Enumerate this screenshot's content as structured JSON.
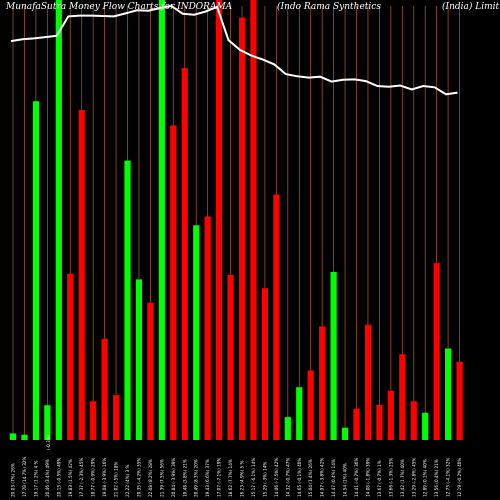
{
  "header": {
    "left": "MunafaSutra  Money Flow  Charts for INDORAMA",
    "middle": "(Indo  Rama  Synthetics",
    "right": "(India) Limit"
  },
  "colors": {
    "background": "#000000",
    "up": "#00ff00",
    "down": "#ff0000",
    "price_line": "#ffffff",
    "grid": "#a0522d"
  },
  "chart_data": {
    "type": "bar",
    "title": "MunafaSutra  Money Flow  Charts for INDORAMA (Indo  Rama  Synthetics (India) Limit",
    "bars": [
      {
        "label": "20.03 (7%) 26%",
        "color": "green",
        "value": 1.5
      },
      {
        "label": "17.78 (14.7%) 32%",
        "color": "green",
        "value": 1.2
      },
      {
        "label": "19.17 (1.2%) 4 %",
        "color": "green",
        "value": 77
      },
      {
        "label": "20.46 (3.4%) 49%",
        "color": "green",
        "value": 7.9
      },
      {
        "label": "20.15 (-0.5%) 49%",
        "color": "green",
        "value": 100
      },
      {
        "label": "19.83 (1.5%) 42%",
        "color": "red",
        "value": 37.8
      },
      {
        "label": "17.37 (-2.3%) 45%",
        "color": "red",
        "value": 75
      },
      {
        "label": "18.77 (-0.9%) 29%",
        "color": "red",
        "value": 8.8
      },
      {
        "label": "19.08 (-3.9%) 16%",
        "color": "red",
        "value": 23
      },
      {
        "label": "21.02 (-5%) 18%",
        "color": "red",
        "value": 10.2
      },
      {
        "label": "22.22 (4%) 3 %",
        "color": "green",
        "value": 63.5
      },
      {
        "label": "20.35 (-4.2%) 35%",
        "color": "green",
        "value": 36.5
      },
      {
        "label": "22.08 (8.2%) 28%",
        "color": "red",
        "value": 31.2
      },
      {
        "label": "21.39 (7.5%) 56%",
        "color": "green",
        "value": 100
      },
      {
        "label": "20.84 (-3.9%) 39%",
        "color": "red",
        "value": 71.5
      },
      {
        "label": "19.48 (3.8%) 21%",
        "color": "red",
        "value": 84.5
      },
      {
        "label": "20.49 (8.3%) 20%",
        "color": "green",
        "value": 48.8
      },
      {
        "label": "19.43 (6.6%) 37%",
        "color": "red",
        "value": 50.8
      },
      {
        "label": "17.07 (-7.1%) 19%",
        "color": "red",
        "value": 100
      },
      {
        "label": "18.62 (7.7%) 14%",
        "color": "red",
        "value": 37.5
      },
      {
        "label": "16.23 (4.9%) 5 %",
        "color": "red",
        "value": 96
      },
      {
        "label": "15.17 (-6.1%) 14%",
        "color": "red",
        "value": 100
      },
      {
        "label": "15.29 (-3%) 14%",
        "color": "red",
        "value": 34.5
      },
      {
        "label": "14.06 (-7.5%) 42%",
        "color": "red",
        "value": 55.8
      },
      {
        "label": "14.32 (-0.7%) 47%",
        "color": "green",
        "value": 5.2
      },
      {
        "label": "14.65 (-0.1%) 40%",
        "color": "green",
        "value": 12
      },
      {
        "label": "15.04 (1.4%) 26%",
        "color": "red",
        "value": 15.8
      },
      {
        "label": "14.97 (-3.8%) 42%",
        "color": "red",
        "value": 25.8
      },
      {
        "label": "14.47 (0.4%) 14%",
        "color": "green",
        "value": 38.2
      },
      {
        "label": "14.54 (1%) 40%",
        "color": "green",
        "value": 2.8
      },
      {
        "label": "14.41 (-0.7%) 36%",
        "color": "red",
        "value": 7.1
      },
      {
        "label": "14.08 (-1.8%) 39%",
        "color": "red",
        "value": 26.2
      },
      {
        "label": "13.67 (-0.7%) 1%",
        "color": "red",
        "value": 8
      },
      {
        "label": "13.66 (-1.3%) 25%",
        "color": "red",
        "value": 11.2
      },
      {
        "label": "13.42 (1.7%) 40%",
        "color": "red",
        "value": 19.5
      },
      {
        "label": "13.29 (-2.8%) 45%",
        "color": "red",
        "value": 8.8
      },
      {
        "label": "12.89 (0.1%) 40%",
        "color": "green",
        "value": 6.2
      },
      {
        "label": "13.56 (0.4%) 21%",
        "color": "red",
        "value": 40.2
      },
      {
        "label": "12.75 (-4.1%) 32%",
        "color": "green",
        "value": 20.8
      },
      {
        "label": "12.19 (-0.2%) 40%",
        "color": "red",
        "value": 17.8
      }
    ],
    "price_line": [
      8.2,
      7.8,
      7.6,
      7.3,
      7.0,
      2.6,
      2.4,
      2.4,
      2.5,
      2.6,
      1.9,
      1.2,
      1.3,
      0.7,
      0.2,
      2.0,
      2.2,
      1.5,
      0.4,
      8.0,
      10.2,
      11.5,
      12.4,
      13.5,
      15.7,
      16.2,
      16.5,
      16.3,
      17.4,
      17.0,
      16.9,
      17.3,
      18.4,
      18.6,
      18.3,
      19.2,
      18.4,
      18.7,
      20.3,
      19.9
    ],
    "ylim": [
      0,
      100
    ],
    "grid": true
  },
  "extra_label": "(-0.3%)"
}
